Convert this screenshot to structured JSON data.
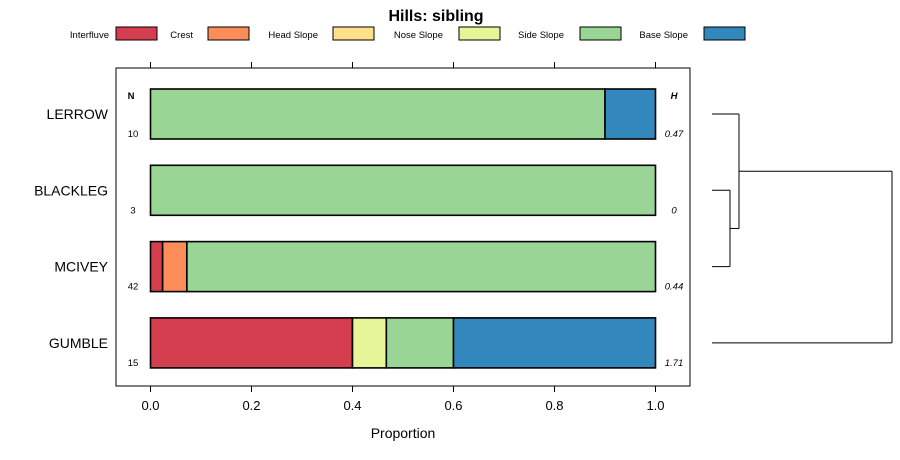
{
  "chart_data": {
    "type": "bar",
    "orientation": "horizontal",
    "stacked": true,
    "title": "Hills: sibling",
    "xlabel": "Proportion",
    "ylabel": "",
    "xlim": [
      -0.07,
      1.07
    ],
    "xticks": [
      0.0,
      0.2,
      0.4,
      0.6,
      0.8,
      1.0
    ],
    "xtick_labels": [
      "0.0",
      "0.2",
      "0.4",
      "0.6",
      "0.8",
      "1.0"
    ],
    "legend_placement": "top",
    "series": [
      {
        "name": "Interfluve",
        "color": "#d53e4f"
      },
      {
        "name": "Crest",
        "color": "#fc8d59"
      },
      {
        "name": "Head Slope",
        "color": "#fee08b"
      },
      {
        "name": "Nose Slope",
        "color": "#e6f598"
      },
      {
        "name": "Side Slope",
        "color": "#99d594"
      },
      {
        "name": "Base Slope",
        "color": "#3288bd"
      }
    ],
    "categories": [
      "LERROW",
      "BLACKLEG",
      "MCIVEY",
      "GUMBLE"
    ],
    "values": {
      "LERROW": [
        0,
        0,
        0,
        0,
        0.9,
        0.1
      ],
      "BLACKLEG": [
        0,
        0,
        0,
        0,
        1.0,
        0
      ],
      "MCIVEY": [
        0.024,
        0.048,
        0,
        0,
        0.928,
        0
      ],
      "GUMBLE": [
        0.4,
        0,
        0,
        0.067,
        0.133,
        0.4
      ]
    },
    "n_header": "N",
    "h_header": "H",
    "n": [
      "10",
      "3",
      "42",
      "15"
    ],
    "h": [
      "0.47",
      "0",
      "0.44",
      "1.71"
    ],
    "dendrogram": {
      "merges": [
        {
          "left": "BLACKLEG",
          "right": "MCIVEY",
          "height": 0.1
        },
        {
          "left": "LERROW",
          "right": "BLACKLEG+MCIVEY",
          "height": 0.15
        },
        {
          "left": "GUMBLE",
          "right": "LERROW+BLACKLEG+MCIVEY",
          "height": 1.0
        }
      ]
    }
  }
}
